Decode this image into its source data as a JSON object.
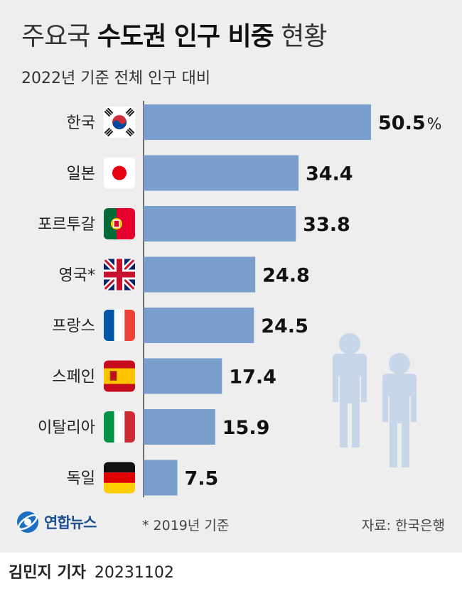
{
  "header": {
    "title_pre": "주요국",
    "title_bold": "수도권 인구 비중",
    "title_post": "현황",
    "subtitle": "2022년 기준 전체 인구 대비"
  },
  "colors": {
    "bar": "#7b9fcc",
    "background": "#eeeeee",
    "people": "#c8d6ea"
  },
  "chart_data": {
    "type": "bar",
    "orientation": "horizontal",
    "categories": [
      "한국",
      "일본",
      "포르투갈",
      "영국*",
      "프랑스",
      "스페인",
      "이탈리아",
      "독일"
    ],
    "values": [
      50.5,
      34.4,
      33.8,
      24.8,
      24.5,
      17.4,
      15.9,
      7.5
    ],
    "value_labels": [
      "50.5",
      "34.4",
      "33.8",
      "24.8",
      "24.5",
      "17.4",
      "15.9",
      "7.5"
    ],
    "unit": "%",
    "flags": [
      "korea-flag-icon",
      "japan-flag-icon",
      "portugal-flag-icon",
      "uk-flag-icon",
      "france-flag-icon",
      "spain-flag-icon",
      "italy-flag-icon",
      "germany-flag-icon"
    ],
    "xlim": [
      0,
      50.5
    ],
    "grid": false,
    "legend": "none"
  },
  "footer": {
    "footnote": "* 2019년 기준",
    "source": "자료: 한국은행",
    "logo_text": "연합뉴스",
    "reporter": "김민지 기자",
    "date": "20231102"
  }
}
